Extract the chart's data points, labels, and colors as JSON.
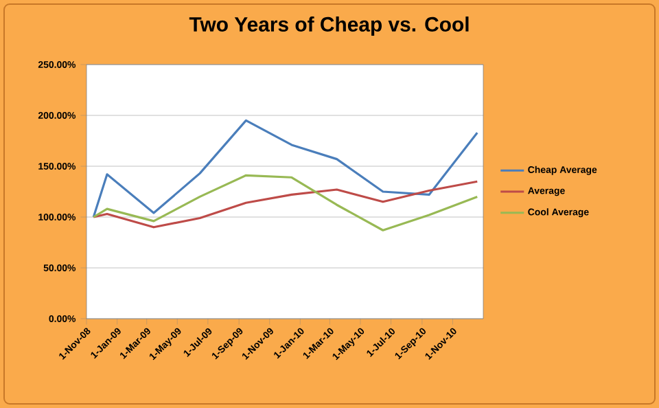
{
  "chart_data": {
    "type": "line",
    "title": "Two Years of Cheap vs. Cool",
    "x": [
      "2008-11-15",
      "2008-12-12",
      "2009-03-15",
      "2009-06-15",
      "2009-09-15",
      "2009-12-15",
      "2010-03-15",
      "2010-06-15",
      "2010-09-15",
      "2010-12-20"
    ],
    "series": [
      {
        "name": "Cheap Average",
        "color": "#4a7ebb",
        "values": [
          100,
          142,
          104,
          143,
          195,
          171,
          157,
          125,
          122,
          183
        ]
      },
      {
        "name": "Average",
        "color": "#be4b48",
        "values": [
          100,
          103,
          90,
          99,
          114,
          122,
          127,
          115,
          126,
          135
        ]
      },
      {
        "name": "Cool Average",
        "color": "#98b954",
        "values": [
          100,
          108,
          96,
          120,
          141,
          139,
          112,
          87,
          102,
          120
        ]
      }
    ],
    "xlim": [
      "2008-11-01",
      "2011-01-01"
    ],
    "xticks": [
      {
        "value": "2008-11-01",
        "label": "1-Nov-08"
      },
      {
        "value": "2009-01-01",
        "label": "1-Jan-09"
      },
      {
        "value": "2009-03-01",
        "label": "1-Mar-09"
      },
      {
        "value": "2009-05-01",
        "label": "1-May-09"
      },
      {
        "value": "2009-07-01",
        "label": "1-Jul-09"
      },
      {
        "value": "2009-09-01",
        "label": "1-Sep-09"
      },
      {
        "value": "2009-11-01",
        "label": "1-Nov-09"
      },
      {
        "value": "2010-01-01",
        "label": "1-Jan-10"
      },
      {
        "value": "2010-03-01",
        "label": "1-Mar-10"
      },
      {
        "value": "2010-05-01",
        "label": "1-May-10"
      },
      {
        "value": "2010-07-01",
        "label": "1-Jul-10"
      },
      {
        "value": "2010-09-01",
        "label": "1-Sep-10"
      },
      {
        "value": "2010-11-01",
        "label": "1-Nov-10"
      }
    ],
    "ylim": [
      0,
      250
    ],
    "yticks": [
      {
        "value": 0,
        "label": "0.00%"
      },
      {
        "value": 50,
        "label": "50.00%"
      },
      {
        "value": 100,
        "label": "100.00%"
      },
      {
        "value": 150,
        "label": "150.00%"
      },
      {
        "value": 200,
        "label": "200.00%"
      },
      {
        "value": 250,
        "label": "250.00%"
      }
    ],
    "grid": "y",
    "legend": "right",
    "marker": "none",
    "line_style": "solid"
  }
}
